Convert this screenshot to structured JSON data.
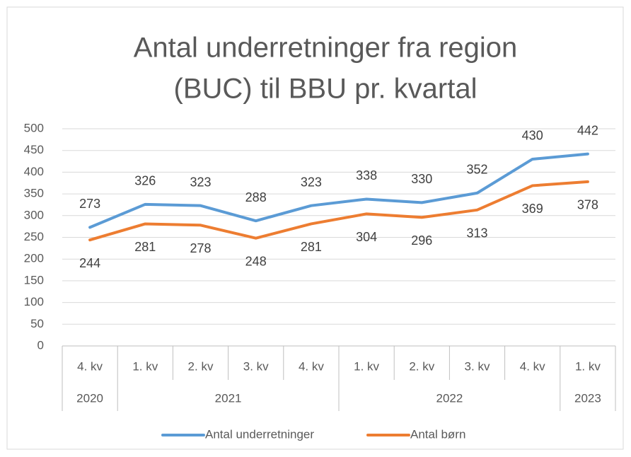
{
  "chart_data": {
    "type": "line",
    "title": [
      "Antal underretninger fra region",
      "(BUC) til BBU pr. kvartal"
    ],
    "category_groups": [
      {
        "label": "2020",
        "categories": [
          "4. kv"
        ]
      },
      {
        "label": "2021",
        "categories": [
          "1. kv",
          "2. kv",
          "3. kv",
          "4. kv"
        ]
      },
      {
        "label": "2022",
        "categories": [
          "1. kv",
          "2. kv",
          "3. kv",
          "4. kv"
        ]
      },
      {
        "label": "2023",
        "categories": [
          "1. kv"
        ]
      }
    ],
    "series": [
      {
        "name": "Antal underretninger",
        "color": "#5b9bd5",
        "values": [
          273,
          326,
          323,
          288,
          323,
          338,
          330,
          352,
          430,
          442
        ]
      },
      {
        "name": "Antal børn",
        "color": "#ed7d31",
        "values": [
          244,
          281,
          278,
          248,
          281,
          304,
          296,
          313,
          369,
          378
        ]
      }
    ],
    "ylim": [
      0,
      500
    ],
    "yticks": [
      0,
      50,
      100,
      150,
      200,
      250,
      300,
      350,
      400,
      450,
      500
    ],
    "grid": true,
    "legend": "bottom"
  }
}
